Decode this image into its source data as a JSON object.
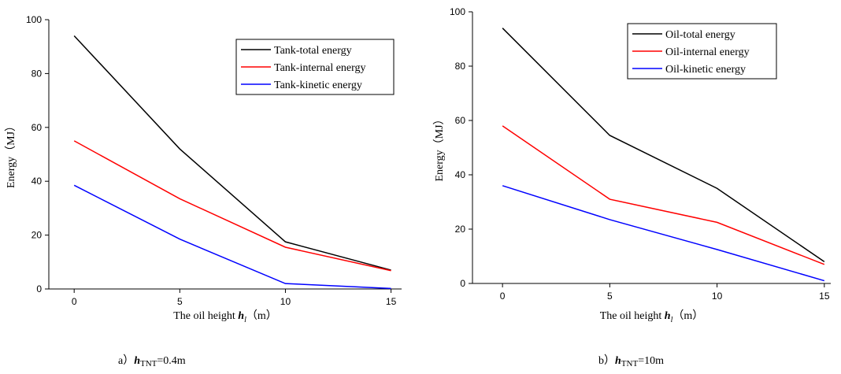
{
  "chart_data": [
    {
      "type": "line",
      "ylabel": "Energy（MJ）",
      "xlabel": {
        "text": "The oil height ",
        "var": "h",
        "sub": "l",
        "unit": "（m）"
      },
      "caption": {
        "prefix": "a）",
        "var": "h",
        "sub": "TNT",
        "suffix": "=0.4m"
      },
      "x": [
        0,
        5,
        10,
        15
      ],
      "xlim": [
        -1.2,
        15.5
      ],
      "xticks": [
        0,
        5,
        10,
        15
      ],
      "ylim": [
        0,
        100
      ],
      "yticks": [
        0,
        20,
        40,
        60,
        80,
        100
      ],
      "legend": "upper right",
      "series": [
        {
          "name": "Tank-total energy",
          "color": "#000000",
          "values": [
            94,
            52,
            17.5,
            7
          ]
        },
        {
          "name": "Tank-internal energy",
          "color": "#ff0000",
          "values": [
            55,
            33.5,
            15.5,
            6.8
          ]
        },
        {
          "name": "Tank-kinetic energy",
          "color": "#0000ff",
          "values": [
            38.5,
            18.5,
            2,
            0.2
          ]
        }
      ]
    },
    {
      "type": "line",
      "ylabel": "Energy（MJ）",
      "xlabel": {
        "text": "The oil height ",
        "var": "h",
        "sub": "l",
        "unit": "（m）"
      },
      "caption": {
        "prefix": "b）",
        "var": "h",
        "sub": "TNT",
        "suffix": "=10m"
      },
      "x": [
        0,
        5,
        10,
        15
      ],
      "xlim": [
        -1.4,
        15.3
      ],
      "xticks": [
        0,
        5,
        10,
        15
      ],
      "ylim": [
        0,
        100
      ],
      "yticks": [
        0,
        20,
        40,
        60,
        80,
        100
      ],
      "legend": "upper right",
      "series": [
        {
          "name": "Oil-total energy",
          "color": "#000000",
          "values": [
            94,
            54.5,
            35,
            8
          ]
        },
        {
          "name": "Oil-internal energy",
          "color": "#ff0000",
          "values": [
            58,
            31,
            22.5,
            7
          ]
        },
        {
          "name": "Oil-kinetic energy",
          "color": "#0000ff",
          "values": [
            36,
            23.5,
            12.5,
            1
          ]
        }
      ]
    }
  ]
}
